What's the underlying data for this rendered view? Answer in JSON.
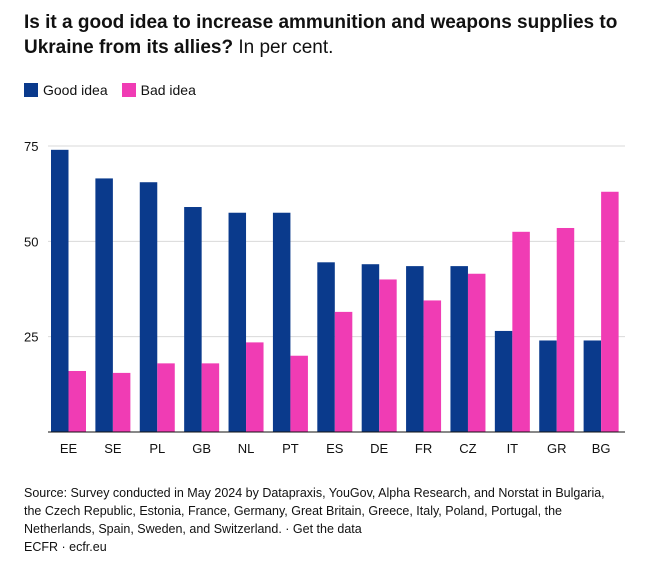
{
  "title": "Is it a good idea to increase ammunition and weapons supplies to Ukraine from its allies?",
  "subtitle": "In per cent.",
  "legend": [
    {
      "label": "Good idea",
      "color": "#0a3a8c"
    },
    {
      "label": "Bad idea",
      "color": "#f03cb4"
    }
  ],
  "footer": {
    "source": "Source: Survey conducted in May 2024 by Datapraxis, YouGov, Alpha Research, and Norstat in Bulgaria, the Czech Republic, Estonia, France, Germany, Great Britain, Greece, Italy, Poland, Portugal, the Netherlands, Spain, Sweden, and Switzerland. · Get the data",
    "credit": "ECFR · ecfr.eu"
  },
  "chart_data": {
    "type": "bar",
    "categories": [
      "EE",
      "SE",
      "PL",
      "GB",
      "NL",
      "PT",
      "ES",
      "DE",
      "FR",
      "CZ",
      "IT",
      "GR",
      "BG"
    ],
    "series": [
      {
        "name": "Good idea",
        "color": "#0a3a8c",
        "values": [
          74,
          66.5,
          65.5,
          59,
          57.5,
          57.5,
          44.5,
          44,
          43.5,
          43.5,
          26.5,
          24,
          24
        ]
      },
      {
        "name": "Bad idea",
        "color": "#f03cb4",
        "values": [
          16,
          15.5,
          18,
          18,
          23.5,
          20,
          31.5,
          40,
          34.5,
          41.5,
          52.5,
          53.5,
          63
        ]
      }
    ],
    "yticks": [
      25,
      50,
      75
    ],
    "ylim": [
      0,
      75
    ],
    "grid": true
  }
}
